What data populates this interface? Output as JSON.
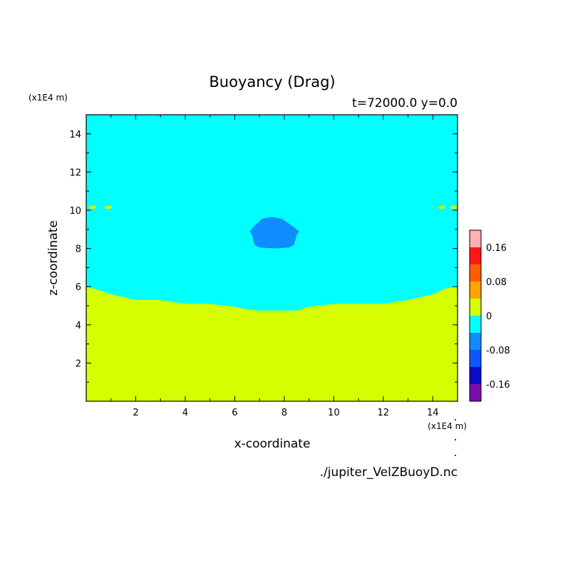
{
  "chart_data": {
    "type": "heatmap",
    "title": "Buoyancy (Drag)",
    "subtitle": "t=72000.0 y=0.0",
    "xlabel": "x-coordinate",
    "ylabel": "z-coordinate",
    "x_unit": "(x1E4 m)",
    "y_unit": "(x1E4 m)",
    "xlim": [
      0,
      15
    ],
    "ylim": [
      0,
      15
    ],
    "x_ticks": [
      "2",
      "4",
      "6",
      "8",
      "10",
      "12",
      "14"
    ],
    "y_ticks": [
      "2",
      "4",
      "6",
      "8",
      "10",
      "12",
      "14"
    ],
    "source": "./jupiter_VelZBuoyD.nc",
    "colorbar": {
      "levels": [
        -0.2,
        -0.16,
        -0.12,
        -0.08,
        -0.04,
        0,
        0.04,
        0.08,
        0.12,
        0.16,
        0.2
      ],
      "colors": [
        "#7b0dab",
        "#0b0bc8",
        "#1155ff",
        "#0f8cff",
        "#00ffff",
        "#d5ff00",
        "#ffa500",
        "#ff5f00",
        "#ff1616",
        "#ffb0b0"
      ],
      "tick_labels": [
        "-0.16",
        "-0.08",
        "0",
        "0.08",
        "0.16"
      ]
    },
    "regions": [
      {
        "name": "upper",
        "value_range": [
          -0.04,
          0
        ],
        "color": "#00ffff"
      },
      {
        "name": "lower",
        "value_range": [
          0,
          0.04
        ],
        "color": "#d5ff00"
      },
      {
        "name": "blob",
        "value_range": [
          -0.08,
          -0.04
        ],
        "color": "#0f8cff"
      }
    ],
    "boundary": {
      "x": [
        0,
        0.3,
        1,
        2,
        3,
        4,
        5,
        6,
        6.5,
        7,
        7.5,
        8,
        8.5,
        9,
        10,
        11,
        12,
        13,
        14,
        14.5,
        15
      ],
      "z": [
        6.0,
        5.9,
        5.6,
        5.3,
        5.3,
        5.1,
        5.1,
        4.95,
        4.8,
        4.75,
        4.75,
        4.75,
        4.75,
        4.95,
        5.1,
        5.1,
        5.1,
        5.3,
        5.6,
        5.9,
        6.0
      ]
    },
    "blob": {
      "x": [
        6.6,
        6.8,
        7.1,
        7.5,
        7.9,
        8.3,
        8.6,
        8.5,
        8.4,
        8.2,
        7.6,
        7.0,
        6.8,
        6.7,
        6.6
      ],
      "z": [
        8.9,
        9.2,
        9.55,
        9.65,
        9.55,
        9.2,
        8.9,
        8.7,
        8.2,
        8.05,
        8.0,
        8.05,
        8.2,
        8.7,
        8.9
      ]
    },
    "edge_specks": [
      {
        "x": 0.25,
        "z": 10.15,
        "color": "#d5ff00"
      },
      {
        "x": 0.9,
        "z": 10.15,
        "color": "#d5ff00"
      },
      {
        "x": 14.35,
        "z": 10.15,
        "color": "#d5ff00"
      },
      {
        "x": 14.85,
        "z": 10.15,
        "color": "#d5ff00"
      }
    ]
  }
}
